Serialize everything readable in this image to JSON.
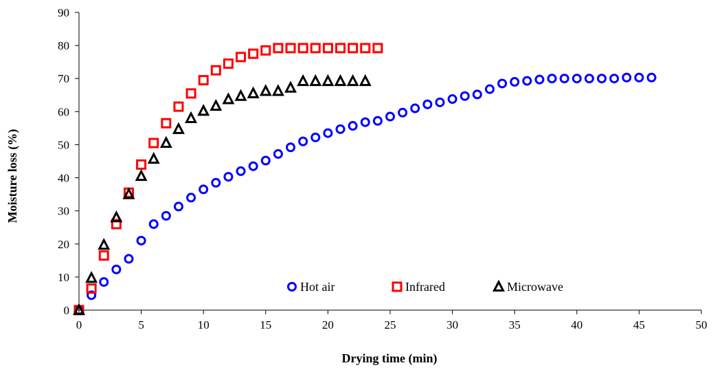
{
  "chart_data": {
    "type": "scatter",
    "xlabel": "Drying time (min)",
    "ylabel": "Moisture loss (%)",
    "xlim": [
      0,
      50
    ],
    "ylim": [
      0,
      90
    ],
    "xticks": [
      0,
      5,
      10,
      15,
      20,
      25,
      30,
      35,
      40,
      45,
      50
    ],
    "yticks": [
      0,
      10,
      20,
      30,
      40,
      50,
      60,
      70,
      80,
      90
    ],
    "grid": false,
    "legend_position": "bottom-center",
    "series": [
      {
        "name": "Hot air",
        "marker": "circle",
        "color": "#0000ff",
        "x": [
          0,
          1,
          2,
          3,
          4,
          5,
          6,
          7,
          8,
          9,
          10,
          11,
          12,
          13,
          14,
          15,
          16,
          17,
          18,
          19,
          20,
          21,
          22,
          23,
          24,
          25,
          26,
          27,
          28,
          29,
          30,
          31,
          32,
          33,
          34,
          35,
          36,
          37,
          38,
          39,
          40,
          41,
          42,
          43,
          44,
          45,
          46
        ],
        "y": [
          0,
          4.5,
          8.5,
          12.3,
          15.5,
          21,
          26,
          28.5,
          31.3,
          34,
          36.5,
          38.5,
          40.3,
          42,
          43.5,
          45.2,
          47.2,
          49.2,
          51,
          52.2,
          53.5,
          54.7,
          55.7,
          56.8,
          57.2,
          58.5,
          59.7,
          61,
          62.2,
          62.8,
          63.8,
          64.7,
          65.2,
          66.8,
          68.5,
          69,
          69.3,
          69.7,
          70,
          70,
          70,
          70,
          70,
          70,
          70.3,
          70.3,
          70.3
        ]
      },
      {
        "name": "Infrared",
        "marker": "square",
        "color": "#ff0000",
        "x": [
          0,
          1,
          2,
          3,
          4,
          5,
          6,
          7,
          8,
          9,
          10,
          11,
          12,
          13,
          14,
          15,
          16,
          17,
          18,
          19,
          20,
          21,
          22,
          23,
          24
        ],
        "y": [
          0,
          6.5,
          16.5,
          26,
          35.5,
          44,
          50.5,
          56.5,
          61.5,
          65.5,
          69.5,
          72.5,
          74.5,
          76.5,
          77.5,
          78.5,
          79.2,
          79.2,
          79.2,
          79.2,
          79.2,
          79.2,
          79.2,
          79.2,
          79.2
        ]
      },
      {
        "name": "Microwave",
        "marker": "triangle",
        "color": "#000000",
        "x": [
          0,
          1,
          2,
          3,
          4,
          5,
          6,
          7,
          8,
          9,
          10,
          11,
          12,
          13,
          14,
          15,
          16,
          17,
          18,
          19,
          20,
          21,
          22,
          23
        ],
        "y": [
          0,
          9.7,
          19.7,
          28,
          35,
          40.5,
          45.7,
          50.5,
          54.7,
          58,
          60.2,
          61.7,
          63.7,
          64.7,
          65.5,
          66.2,
          66.2,
          67.2,
          69.2,
          69.2,
          69.2,
          69.2,
          69.2,
          69.2
        ]
      }
    ]
  }
}
